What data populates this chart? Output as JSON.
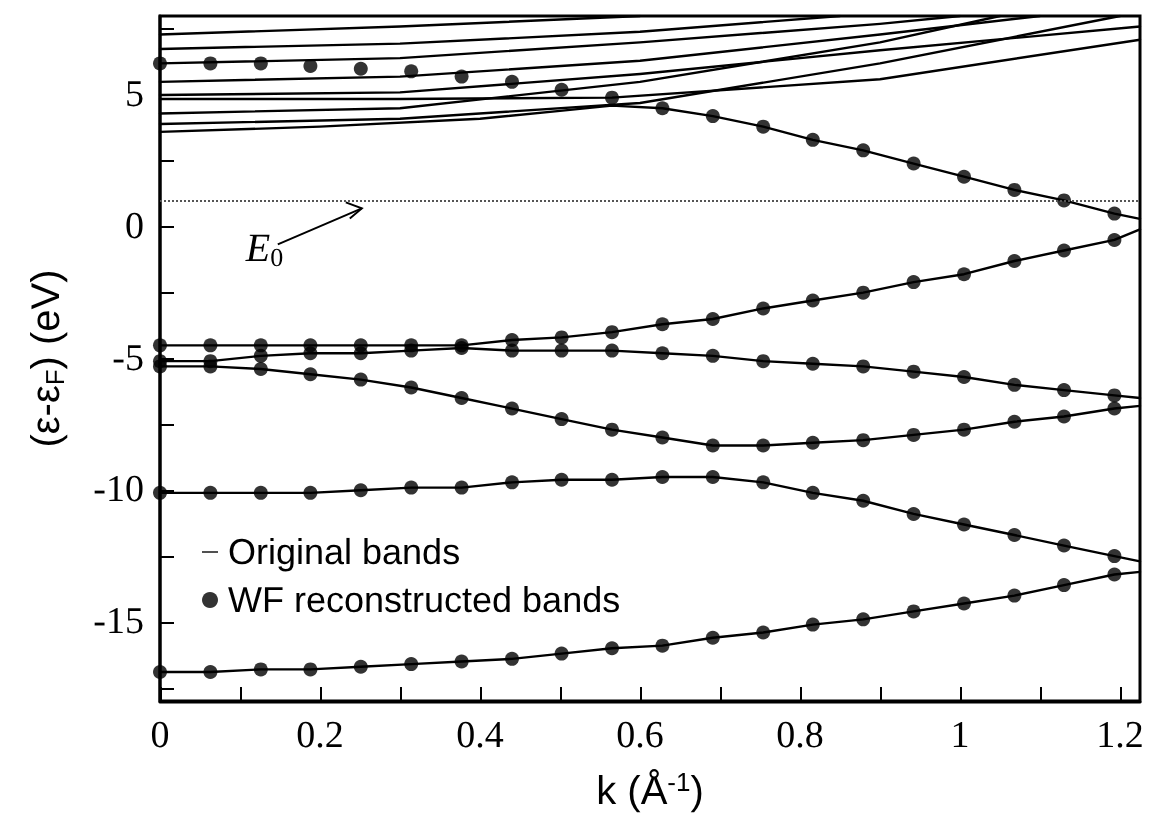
{
  "chart_data": {
    "type": "line",
    "xlabel": "k (Å$^{-1}$)",
    "ylabel": "(ε-ε$_{F}$) (eV)",
    "xlim": [
      0,
      1.225
    ],
    "ylim": [
      -18,
      8
    ],
    "xticks": [
      0,
      {
        "value": 0.1,
        "label": null
      },
      0.2,
      {
        "value": 0.3,
        "label": null
      },
      0.4,
      {
        "value": 0.5,
        "label": null
      },
      0.6,
      {
        "value": 0.7,
        "label": null
      },
      0.8,
      {
        "value": 0.9,
        "label": null
      },
      1,
      {
        "value": 1.1,
        "label": null
      },
      1.2
    ],
    "yticks": [
      {
        "value": -17.5,
        "label": null
      },
      -15,
      {
        "value": -12.5,
        "label": null
      },
      -10,
      {
        "value": -7.5,
        "label": null
      },
      -5,
      {
        "value": -2.5,
        "label": null
      },
      0,
      {
        "value": 2.5,
        "label": null
      },
      5,
      {
        "value": 7.5,
        "label": null
      }
    ],
    "legend": "bottom left",
    "line_style": "solid",
    "ref_lines": [
      {
        "axis": "y",
        "value": 1,
        "label": "E$_{0}$",
        "line_style": "dotted",
        "color": "#555555"
      }
    ],
    "series": [
      {
        "name": "Original bands",
        "color": "#000000",
        "x": [
          0,
          0.063,
          0.126,
          0.188,
          0.251,
          0.314,
          0.377,
          0.44,
          0.502,
          0.565,
          0.628,
          0.691,
          0.754,
          0.816,
          0.879,
          0.942,
          1.005,
          1.068,
          1.13,
          1.193,
          1.225
        ],
        "values": [
          -16.9,
          -16.9,
          -16.8,
          -16.8,
          -16.7,
          -16.6,
          -16.5,
          -16.4,
          -16.2,
          -16.0,
          -15.9,
          -15.6,
          -15.4,
          -15.1,
          -14.9,
          -14.6,
          -14.3,
          -14.0,
          -13.6,
          -13.2,
          -13.1
        ]
      },
      {
        "color": "#000000",
        "x": [
          0,
          0.063,
          0.126,
          0.188,
          0.251,
          0.314,
          0.377,
          0.44,
          0.502,
          0.565,
          0.628,
          0.691,
          0.754,
          0.816,
          0.879,
          0.942,
          1.005,
          1.068,
          1.13,
          1.193,
          1.225
        ],
        "values": [
          -10.1,
          -10.1,
          -10.1,
          -10.1,
          -10.0,
          -9.9,
          -9.9,
          -9.7,
          -9.6,
          -9.6,
          -9.5,
          -9.5,
          -9.7,
          -10.1,
          -10.4,
          -10.9,
          -11.3,
          -11.7,
          -12.1,
          -12.5,
          -12.7
        ]
      },
      {
        "color": "#000000",
        "x": [
          0,
          0.063,
          0.126,
          0.188,
          0.251,
          0.314,
          0.377,
          0.44,
          0.502,
          0.565,
          0.628,
          0.691,
          0.754,
          0.816,
          0.879,
          0.942,
          1.005,
          1.068,
          1.13,
          1.193,
          1.225
        ],
        "values": [
          -5.3,
          -5.3,
          -5.4,
          -5.6,
          -5.8,
          -6.1,
          -6.5,
          -6.9,
          -7.3,
          -7.7,
          -8.0,
          -8.3,
          -8.3,
          -8.2,
          -8.1,
          -7.9,
          -7.7,
          -7.4,
          -7.2,
          -6.9,
          -6.8
        ]
      },
      {
        "color": "#000000",
        "x": [
          0,
          0.063,
          0.126,
          0.188,
          0.251,
          0.314,
          0.377,
          0.44,
          0.502,
          0.565,
          0.628,
          0.691,
          0.754,
          0.816,
          0.879,
          0.942,
          1.005,
          1.068,
          1.13,
          1.193,
          1.225
        ],
        "values": [
          -5.1,
          -5.1,
          -4.9,
          -4.8,
          -4.8,
          -4.7,
          -4.6,
          -4.7,
          -4.7,
          -4.7,
          -4.8,
          -4.9,
          -5.1,
          -5.2,
          -5.3,
          -5.5,
          -5.7,
          -6.0,
          -6.2,
          -6.4,
          -6.5
        ]
      },
      {
        "color": "#000000",
        "x": [
          0,
          0.063,
          0.126,
          0.188,
          0.251,
          0.314,
          0.377,
          0.44,
          0.502,
          0.565,
          0.628,
          0.691,
          0.754,
          0.816,
          0.879,
          0.942,
          1.005,
          1.068,
          1.13,
          1.193,
          1.225
        ],
        "values": [
          -4.5,
          -4.5,
          -4.5,
          -4.5,
          -4.5,
          -4.5,
          -4.5,
          -4.3,
          -4.2,
          -4.0,
          -3.7,
          -3.5,
          -3.1,
          -2.8,
          -2.5,
          -2.1,
          -1.8,
          -1.3,
          -0.9,
          -0.5,
          -0.1
        ]
      },
      {
        "color": "#000000",
        "x": [
          0,
          0.2,
          0.4,
          0.5,
          0.565,
          0.628,
          0.691,
          0.754,
          0.816,
          0.879,
          0.942,
          1.005,
          1.068,
          1.13,
          1.193,
          1.225
        ],
        "values": [
          3.6,
          3.8,
          4.1,
          4.4,
          4.6,
          4.5,
          4.2,
          3.8,
          3.3,
          2.9,
          2.4,
          1.9,
          1.4,
          1.0,
          0.5,
          0.3
        ]
      },
      {
        "color": "#000000",
        "x": [
          0,
          0.3,
          0.6,
          0.9,
          1.2
        ],
        "values": [
          3.9,
          4.1,
          4.7,
          6.2,
          8
        ]
      },
      {
        "color": "#000000",
        "x": [
          0,
          0.3,
          0.6,
          0.9,
          1.05
        ],
        "values": [
          4.3,
          4.5,
          5.5,
          7.0,
          8
        ]
      },
      {
        "color": "#000000",
        "x": [
          0,
          0.3,
          0.565,
          0.9,
          1.225
        ],
        "values": [
          4.85,
          4.85,
          4.9,
          5.6,
          7.1
        ]
      },
      {
        "color": "#000000",
        "x": [
          0,
          0.3,
          0.6,
          0.9,
          1.225
        ],
        "values": [
          5.0,
          5.1,
          5.8,
          6.7,
          7.6
        ]
      },
      {
        "color": "#000000",
        "x": [
          0,
          0.3,
          0.6,
          0.9,
          1.1
        ],
        "values": [
          5.5,
          5.7,
          6.3,
          7.3,
          8
        ]
      },
      {
        "color": "#000000",
        "x": [
          0,
          0.3,
          0.6,
          0.9,
          1.0
        ],
        "values": [
          6.2,
          6.4,
          7.0,
          7.7,
          8
        ]
      },
      {
        "color": "#000000",
        "x": [
          0,
          0.3,
          0.6,
          0.85
        ],
        "values": [
          6.75,
          6.95,
          7.4,
          8
        ]
      },
      {
        "color": "#000000",
        "x": [
          0,
          0.3,
          0.6
        ],
        "values": [
          7.3,
          7.6,
          8
        ]
      },
      {
        "type": "scatter",
        "name": "WF reconstructed bands",
        "color": "#000000",
        "marker": "circle",
        "x": [
          0,
          0.063,
          0.126,
          0.188,
          0.251,
          0.314,
          0.377,
          0.44,
          0.502,
          0.565,
          0.628,
          0.691,
          0.754,
          0.816,
          0.879,
          0.942,
          1.005,
          1.068,
          1.13,
          1.193,
          0,
          0.063,
          0.126,
          0.188,
          0.251,
          0.314,
          0.377,
          0.44,
          0.502,
          0.565,
          0.628,
          0.691,
          0.754,
          0.816,
          0.879,
          0.942,
          1.005,
          1.068,
          1.13,
          1.193,
          0,
          0.063,
          0.126,
          0.188,
          0.251,
          0.314,
          0.377,
          0.44,
          0.502,
          0.565,
          0.628,
          0.691,
          0.754,
          0.816,
          0.879,
          0.942,
          1.005,
          1.068,
          1.13,
          1.193,
          0,
          0.063,
          0.126,
          0.188,
          0.251,
          0.314,
          0.377,
          0.44,
          0.502,
          0.565,
          0.628,
          0.691,
          0.754,
          0.816,
          0.879,
          0.942,
          1.005,
          1.068,
          1.13,
          1.193,
          0,
          0.063,
          0.126,
          0.188,
          0.251,
          0.314,
          0.377,
          0.44,
          0.502,
          0.565,
          0.628,
          0.691,
          0.754,
          0.816,
          0.879,
          0.942,
          1.005,
          1.068,
          1.13,
          1.193,
          0,
          0.063,
          0.126,
          0.188,
          0.251,
          0.314,
          0.377,
          0.44,
          0.502,
          0.565,
          0.628,
          0.691,
          0.754,
          0.816,
          0.879,
          0.942,
          1.005,
          1.068,
          1.13,
          1.193
        ],
        "values": [
          -16.9,
          -16.9,
          -16.8,
          -16.8,
          -16.7,
          -16.6,
          -16.5,
          -16.4,
          -16.2,
          -16.0,
          -15.9,
          -15.6,
          -15.4,
          -15.1,
          -14.9,
          -14.6,
          -14.3,
          -14.0,
          -13.6,
          -13.2,
          -10.1,
          -10.1,
          -10.1,
          -10.1,
          -10.0,
          -9.9,
          -9.9,
          -9.7,
          -9.6,
          -9.6,
          -9.5,
          -9.5,
          -9.7,
          -10.1,
          -10.4,
          -10.9,
          -11.3,
          -11.7,
          -12.1,
          -12.5,
          -5.3,
          -5.3,
          -5.4,
          -5.6,
          -5.8,
          -6.1,
          -6.5,
          -6.9,
          -7.3,
          -7.7,
          -8.0,
          -8.3,
          -8.3,
          -8.2,
          -8.1,
          -7.9,
          -7.7,
          -7.4,
          -7.2,
          -6.9,
          -5.1,
          -5.1,
          -4.9,
          -4.8,
          -4.8,
          -4.7,
          -4.6,
          -4.7,
          -4.7,
          -4.7,
          -4.8,
          -4.9,
          -5.1,
          -5.2,
          -5.3,
          -5.5,
          -5.7,
          -6.0,
          -6.2,
          -6.4,
          -4.5,
          -4.5,
          -4.5,
          -4.5,
          -4.5,
          -4.5,
          -4.5,
          -4.3,
          -4.2,
          -4.0,
          -3.7,
          -3.5,
          -3.1,
          -2.8,
          -2.5,
          -2.1,
          -1.8,
          -1.3,
          -0.9,
          -0.5,
          6.2,
          6.2,
          6.2,
          6.1,
          6.0,
          5.9,
          5.7,
          5.5,
          5.2,
          4.9,
          4.5,
          4.2,
          3.8,
          3.3,
          2.9,
          2.4,
          1.9,
          1.4,
          1.0,
          0.5
        ]
      }
    ]
  }
}
